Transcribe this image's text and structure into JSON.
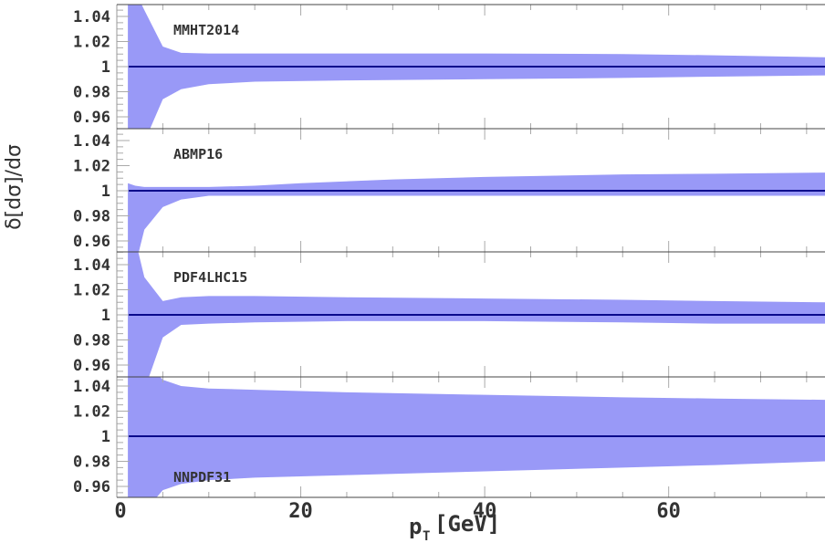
{
  "chart_data": {
    "type": "area",
    "ylabel": "δ[dσ]/dσ",
    "xlabel_main": "p",
    "xlabel_sub": "T",
    "xlabel_rest": "[GeV]",
    "xlim": [
      0,
      77
    ],
    "x_ticks": [
      0,
      20,
      40,
      60
    ],
    "x_ticks_display": [
      "0",
      "20",
      "40",
      "60"
    ],
    "ylim": [
      0.95,
      1.05
    ],
    "y_ticks": [
      0.96,
      0.98,
      1.0,
      1.02,
      1.04
    ],
    "y_ticks_display": [
      "0.96",
      "0.98",
      "1",
      "1.02",
      "1.04"
    ],
    "band_color": "#9999f7",
    "line_color": "#0a0a8c",
    "panels": [
      {
        "name": "MMHT2014",
        "label_pos": "top-left",
        "x": [
          1.2,
          2.0,
          3.0,
          5.0,
          7.0,
          10.0,
          15.0,
          25.0,
          40.0,
          55.0,
          65.0,
          77.0
        ],
        "upper": [
          1.06,
          1.06,
          1.045,
          1.016,
          1.011,
          1.0105,
          1.0105,
          1.0105,
          1.0105,
          1.01,
          1.009,
          1.0075
        ],
        "lower": [
          0.94,
          0.94,
          0.94,
          0.974,
          0.982,
          0.986,
          0.988,
          0.989,
          0.99,
          0.991,
          0.992,
          0.993
        ],
        "central": 1.0
      },
      {
        "name": "ABMP16",
        "label_pos": "top-left",
        "x": [
          1.2,
          2.0,
          3.0,
          5.0,
          7.0,
          10.0,
          15.0,
          20.0,
          30.0,
          40.0,
          55.0,
          65.0,
          77.0
        ],
        "upper": [
          1.006,
          1.004,
          1.003,
          1.003,
          1.003,
          1.003,
          1.004,
          1.006,
          1.009,
          1.011,
          1.013,
          1.0135,
          1.0145
        ],
        "lower": [
          0.94,
          0.94,
          0.969,
          0.987,
          0.993,
          0.996,
          0.996,
          0.996,
          0.996,
          0.996,
          0.996,
          0.996,
          0.996
        ],
        "central": 1.0
      },
      {
        "name": "PDF4LHC15",
        "label_pos": "top-left",
        "x": [
          1.2,
          2.0,
          3.0,
          5.0,
          7.0,
          10.0,
          15.0,
          25.0,
          40.0,
          55.0,
          65.0,
          77.0
        ],
        "upper": [
          1.06,
          1.06,
          1.03,
          1.011,
          1.014,
          1.015,
          1.015,
          1.014,
          1.013,
          1.012,
          1.011,
          1.01
        ],
        "lower": [
          0.94,
          0.94,
          0.94,
          0.982,
          0.992,
          0.993,
          0.994,
          0.995,
          0.995,
          0.994,
          0.993,
          0.993
        ],
        "central": 1.0
      },
      {
        "name": "NNPDF31",
        "label_pos": "bottom-left",
        "x": [
          1.2,
          2.0,
          3.0,
          5.0,
          7.0,
          10.0,
          15.0,
          25.0,
          40.0,
          55.0,
          65.0,
          77.0
        ],
        "upper": [
          1.06,
          1.06,
          1.06,
          1.045,
          1.04,
          1.038,
          1.037,
          1.035,
          1.033,
          1.031,
          1.03,
          1.029
        ],
        "lower": [
          0.94,
          0.94,
          0.94,
          0.957,
          0.962,
          0.965,
          0.967,
          0.969,
          0.972,
          0.975,
          0.977,
          0.98
        ],
        "central": 1.0
      }
    ]
  }
}
